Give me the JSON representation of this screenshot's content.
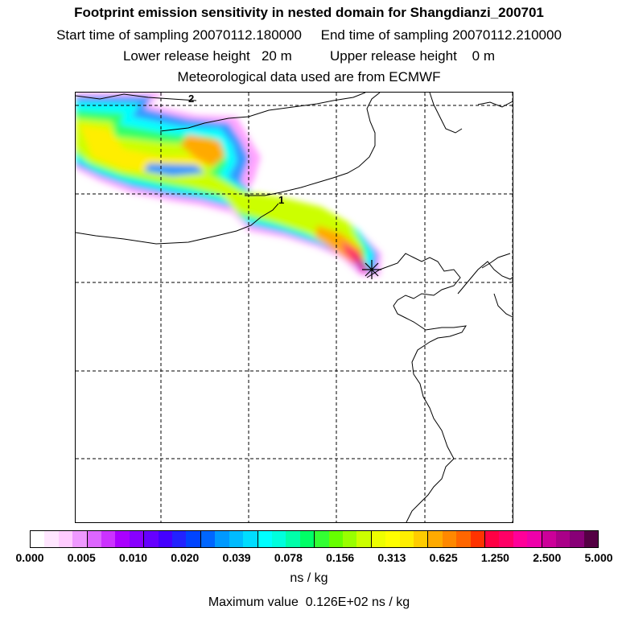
{
  "header": {
    "title": "Footprint emission sensitivity in nested domain for Shangdianzi_200701",
    "line2": "Start time of sampling 20070112.180000     End time of sampling 20070112.210000",
    "line3": "Lower release height   20 m          Upper release height    0 m",
    "line4": "Meteorological data used are from ECMWF"
  },
  "map": {
    "markers": [
      {
        "label": "2"
      },
      {
        "label": "1"
      }
    ],
    "receptor_symbol": "star-icon",
    "gridlines": "dashed",
    "plume_colors": [
      "#ff66ff",
      "#cc33ff",
      "#3399ff",
      "#00ffff",
      "#33ff66",
      "#ccff00",
      "#ffee00",
      "#ffaa00",
      "#ff3366",
      "#cc0099"
    ]
  },
  "colorbar": {
    "colors": [
      "#ffffff",
      "#ffe6ff",
      "#ffccff",
      "#ee99ff",
      "#dd66ff",
      "#cc33ff",
      "#aa00ff",
      "#8800ff",
      "#6600ff",
      "#4400ff",
      "#2222ff",
      "#0044ff",
      "#0066ff",
      "#0099ff",
      "#00bbff",
      "#00ddff",
      "#00ffff",
      "#00ffdd",
      "#00ffaa",
      "#00ff66",
      "#33ff33",
      "#66ff00",
      "#99ff00",
      "#ccff00",
      "#eeff00",
      "#ffff00",
      "#ffee00",
      "#ffcc00",
      "#ffaa00",
      "#ff8800",
      "#ff6600",
      "#ff3300",
      "#ff0044",
      "#ff0066",
      "#ff0099",
      "#ee00aa",
      "#cc0099",
      "#aa0088",
      "#880077",
      "#550044"
    ],
    "ticks": [
      "0.000",
      "0.005",
      "0.010",
      "0.020",
      "0.039",
      "0.078",
      "0.156",
      "0.313",
      "0.625",
      "1.250",
      "2.500",
      "5.000"
    ],
    "units": "ns / kg"
  },
  "footer": {
    "max_value": "Maximum value  0.126E+02 ns / kg"
  }
}
